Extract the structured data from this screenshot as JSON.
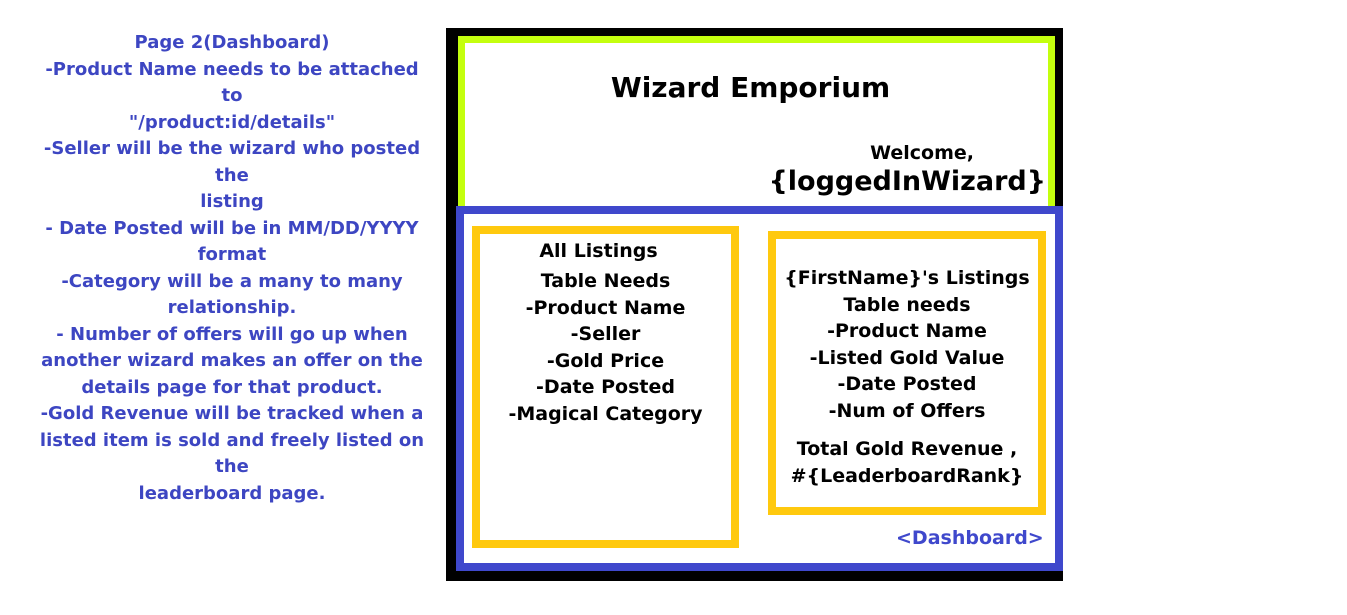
{
  "notes": [
    "Page 2(Dashboard)",
    "-Product Name needs to be attached to",
    "\"/product:id/details\"",
    "-Seller will be the wizard who posted the",
    "listing",
    "- Date Posted will be in MM/DD/YYYY",
    "format",
    "-Category will be a many to many",
    "relationship.",
    "- Number of offers will go up when",
    "another wizard makes an offer on the",
    "details page for that product.",
    "-Gold Revenue will be tracked when a",
    "listed item is sold and freely listed on the",
    "leaderboard page."
  ],
  "header": {
    "title": "Wizard Emporium",
    "welcome": "Welcome,",
    "user": "{loggedInWizard}"
  },
  "all_listings": {
    "title": "All Listings",
    "items": [
      "Table Needs",
      "-Product Name",
      "-Seller",
      "-Gold Price",
      "-Date Posted",
      "-Magical Category"
    ]
  },
  "my_listings": {
    "items": [
      "{FirstName}'s Listings",
      "Table needs",
      "-Product Name",
      "-Listed Gold Value",
      "-Date Posted",
      "-Num of Offers"
    ],
    "revenue": [
      "Total Gold Revenue ,",
      "#{LeaderboardRank}"
    ]
  },
  "footer": {
    "link": "<Dashboard>"
  },
  "colors": {
    "header_border": "#c4ff0e",
    "main_border": "#3f48cc",
    "panel_border": "#ffc90e",
    "notes_text": "#3d46c2"
  }
}
